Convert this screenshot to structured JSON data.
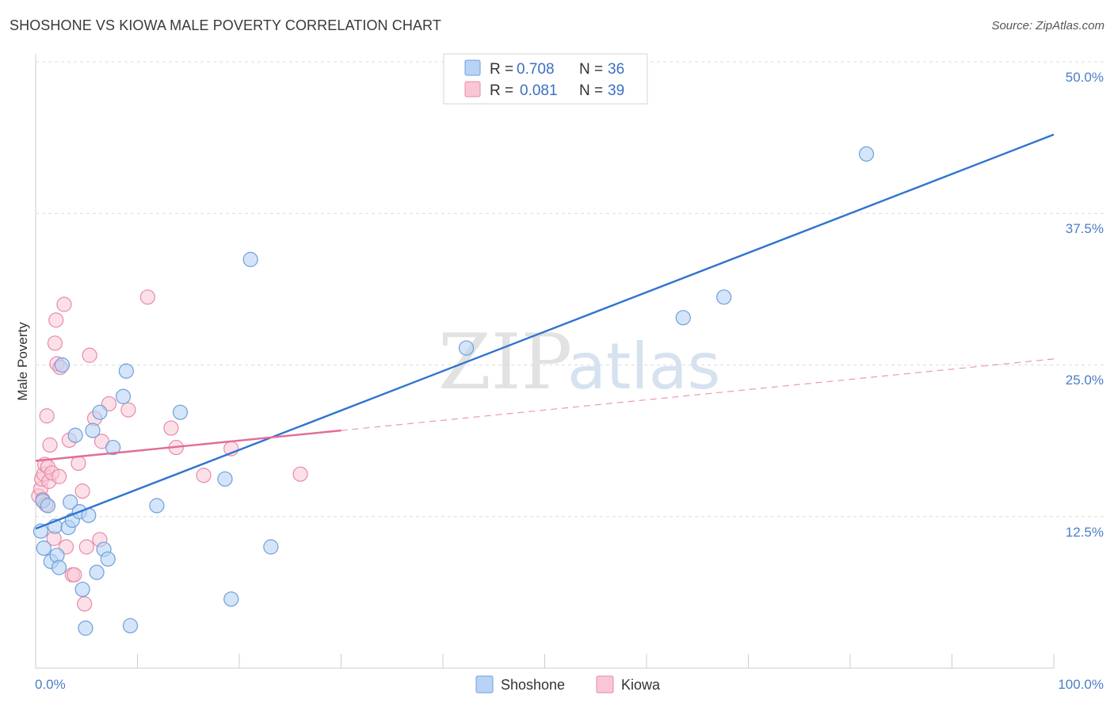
{
  "title": "SHOSHONE VS KIOWA MALE POVERTY CORRELATION CHART",
  "source": "Source: ZipAtlas.com",
  "watermark": {
    "zip": "ZIP",
    "atlas": "atlas"
  },
  "colors": {
    "shoshone_fill": "#b8d3f5",
    "shoshone_stroke": "#6f9fdc",
    "shoshone_line": "#2f74d0",
    "kiowa_fill": "#f9c6d6",
    "kiowa_stroke": "#e88aa8",
    "kiowa_line": "#e36c96",
    "grid": "#dddddd",
    "axis_text": "#4a7ec8"
  },
  "legend": {
    "rows": [
      {
        "r_label": "R = ",
        "r_value": "0.708",
        "n_label": "N = ",
        "n_value": "36"
      },
      {
        "r_label": "R = ",
        "r_value": "0.081",
        "n_label": "N = ",
        "n_value": "39"
      }
    ]
  },
  "chart_data": {
    "type": "scatter",
    "title": "SHOSHONE VS KIOWA MALE POVERTY CORRELATION CHART",
    "xlabel": "",
    "ylabel": "Male Poverty",
    "xlim": [
      0,
      100
    ],
    "ylim": [
      0,
      52
    ],
    "x_tick_labels": [
      "0.0%",
      "100.0%"
    ],
    "y_ticks": [
      12.5,
      25.0,
      37.5,
      50.0
    ],
    "y_tick_labels": [
      "12.5%",
      "25.0%",
      "37.5%",
      "50.0%"
    ],
    "grid": true,
    "legend_position": "bottom-center",
    "series": [
      {
        "name": "Shoshone",
        "R": 0.708,
        "N": 36,
        "points": [
          [
            0.5,
            11.3
          ],
          [
            0.7,
            13.8
          ],
          [
            0.8,
            9.9
          ],
          [
            1.2,
            13.4
          ],
          [
            1.5,
            8.8
          ],
          [
            1.9,
            11.7
          ],
          [
            2.1,
            9.3
          ],
          [
            2.3,
            8.3
          ],
          [
            2.6,
            25.0
          ],
          [
            3.2,
            11.6
          ],
          [
            3.4,
            13.7
          ],
          [
            3.6,
            12.2
          ],
          [
            3.9,
            19.2
          ],
          [
            4.3,
            12.9
          ],
          [
            4.6,
            6.5
          ],
          [
            4.9,
            3.3
          ],
          [
            5.2,
            12.6
          ],
          [
            5.6,
            19.6
          ],
          [
            6.0,
            7.9
          ],
          [
            6.3,
            21.1
          ],
          [
            6.7,
            9.8
          ],
          [
            7.1,
            9.0
          ],
          [
            7.6,
            18.2
          ],
          [
            8.6,
            22.4
          ],
          [
            8.9,
            24.5
          ],
          [
            9.3,
            3.5
          ],
          [
            11.9,
            13.4
          ],
          [
            14.2,
            21.1
          ],
          [
            18.6,
            15.6
          ],
          [
            19.2,
            5.7
          ],
          [
            21.1,
            33.7
          ],
          [
            23.1,
            10.0
          ],
          [
            42.3,
            26.4
          ],
          [
            63.6,
            28.9
          ],
          [
            67.6,
            30.6
          ],
          [
            81.6,
            42.4
          ]
        ],
        "trend_line": {
          "x": [
            0,
            100
          ],
          "y": [
            11.5,
            44.0
          ],
          "style": "solid"
        }
      },
      {
        "name": "Kiowa",
        "R": 0.081,
        "N": 39,
        "points": [
          [
            0.3,
            14.2
          ],
          [
            0.5,
            14.8
          ],
          [
            0.6,
            15.6
          ],
          [
            0.7,
            13.9
          ],
          [
            0.8,
            16.0
          ],
          [
            0.9,
            16.8
          ],
          [
            1.0,
            13.5
          ],
          [
            1.1,
            20.8
          ],
          [
            1.2,
            16.6
          ],
          [
            1.3,
            15.4
          ],
          [
            1.4,
            18.4
          ],
          [
            1.6,
            16.1
          ],
          [
            1.8,
            10.7
          ],
          [
            1.9,
            26.8
          ],
          [
            2.0,
            28.7
          ],
          [
            2.1,
            25.1
          ],
          [
            2.3,
            15.8
          ],
          [
            2.4,
            24.8
          ],
          [
            2.8,
            30.0
          ],
          [
            3.0,
            10.0
          ],
          [
            3.3,
            18.8
          ],
          [
            3.6,
            7.7
          ],
          [
            3.8,
            7.7
          ],
          [
            4.2,
            16.9
          ],
          [
            4.6,
            14.6
          ],
          [
            4.8,
            5.3
          ],
          [
            5.0,
            10.0
          ],
          [
            5.3,
            25.8
          ],
          [
            5.8,
            20.6
          ],
          [
            6.3,
            10.6
          ],
          [
            6.5,
            18.7
          ],
          [
            7.2,
            21.8
          ],
          [
            9.1,
            21.3
          ],
          [
            11.0,
            30.6
          ],
          [
            13.3,
            19.8
          ],
          [
            13.8,
            18.2
          ],
          [
            16.5,
            15.9
          ],
          [
            19.2,
            18.1
          ],
          [
            26.0,
            16.0
          ]
        ],
        "trend_line": {
          "x": [
            0,
            30
          ],
          "y": [
            17.1,
            19.6
          ],
          "style": "solid"
        },
        "trend_extension": {
          "x": [
            30,
            100
          ],
          "y": [
            19.6,
            25.5
          ],
          "style": "dashed"
        }
      }
    ]
  }
}
